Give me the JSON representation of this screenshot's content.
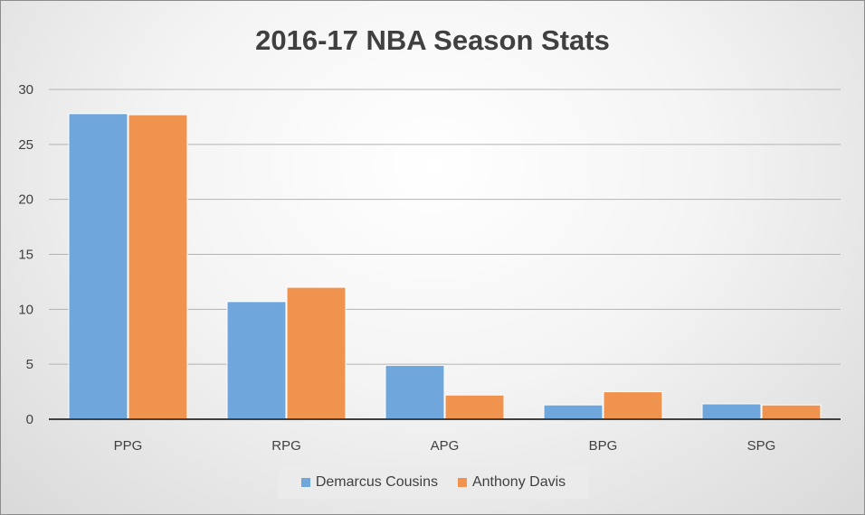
{
  "chart_data": {
    "type": "bar",
    "title": "2016-17 NBA Season Stats",
    "xlabel": "",
    "ylabel": "",
    "categories": [
      "PPG",
      "RPG",
      "APG",
      "BPG",
      "SPG"
    ],
    "series": [
      {
        "name": "Demarcus Cousins",
        "color": "#6fa6dc",
        "values": [
          27.8,
          10.7,
          4.9,
          1.3,
          1.4
        ]
      },
      {
        "name": "Anthony Davis",
        "color": "#f0934f",
        "values": [
          27.7,
          12.0,
          2.2,
          2.5,
          1.3
        ]
      }
    ],
    "ylim": [
      0,
      30
    ],
    "yticks": [
      "0",
      "5",
      "10",
      "15",
      "20",
      "25",
      "30"
    ],
    "grid": true,
    "legend_position": "bottom"
  }
}
